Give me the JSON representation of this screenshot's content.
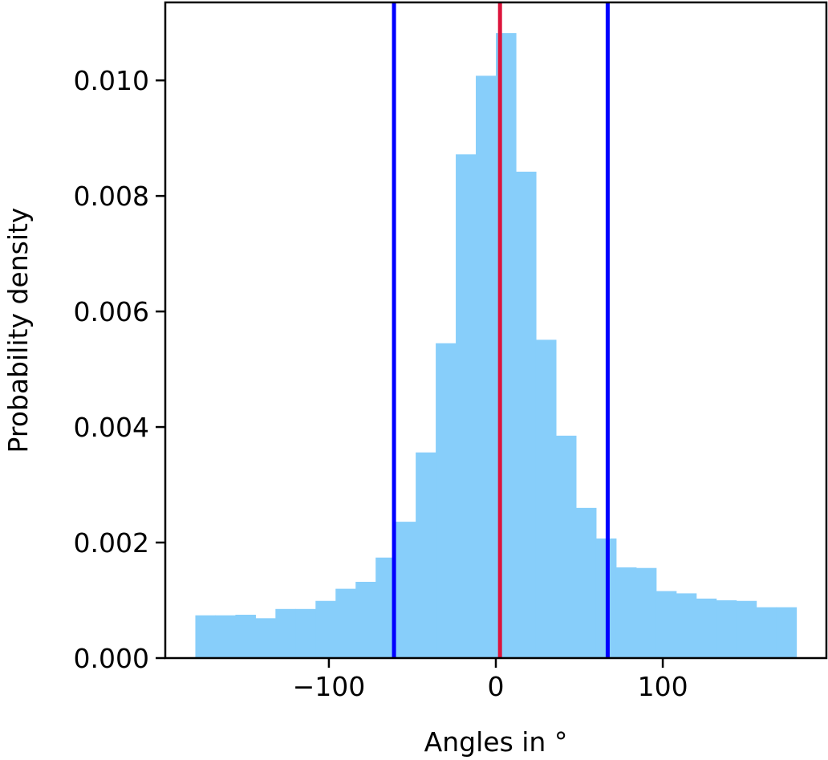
{
  "chart_data": {
    "type": "bar",
    "title": "",
    "xlabel": "Angles in °",
    "ylabel": "Probability density",
    "xlim": [
      -198,
      198
    ],
    "ylim": [
      0,
      0.01135
    ],
    "x_ticks": [
      -100,
      0,
      100
    ],
    "x_tick_labels": [
      "−100",
      "0",
      "100"
    ],
    "y_ticks": [
      0,
      0.002,
      0.004,
      0.006,
      0.008,
      0.01
    ],
    "y_tick_labels": [
      "0.000",
      "0.002",
      "0.004",
      "0.006",
      "0.008",
      "0.010"
    ],
    "grid": false,
    "legend": "none",
    "bin_edges": [
      -180,
      -168,
      -156,
      -144,
      -132,
      -120,
      -108,
      -96,
      -84,
      -72,
      -60,
      -48,
      -36,
      -24,
      -12,
      0,
      12,
      24,
      36,
      48,
      60,
      72,
      84,
      96,
      108,
      120,
      132,
      144,
      156,
      168,
      180
    ],
    "values": [
      0.00074,
      0.00074,
      0.00075,
      0.00069,
      0.00085,
      0.00085,
      0.00099,
      0.0012,
      0.00132,
      0.00174,
      0.00236,
      0.00356,
      0.00545,
      0.00872,
      0.01008,
      0.01082,
      0.00842,
      0.00551,
      0.00385,
      0.0026,
      0.00207,
      0.00157,
      0.00156,
      0.00116,
      0.00112,
      0.00103,
      0.001,
      0.00099,
      0.00088,
      0.00088
    ],
    "vertical_lines": [
      {
        "x": -61,
        "color": "#0000ff"
      },
      {
        "x": 2.5,
        "color": "#dc143c"
      },
      {
        "x": 67,
        "color": "#0000ff"
      }
    ],
    "colors": {
      "bars": "#87cefa",
      "axes": "#000000"
    }
  }
}
